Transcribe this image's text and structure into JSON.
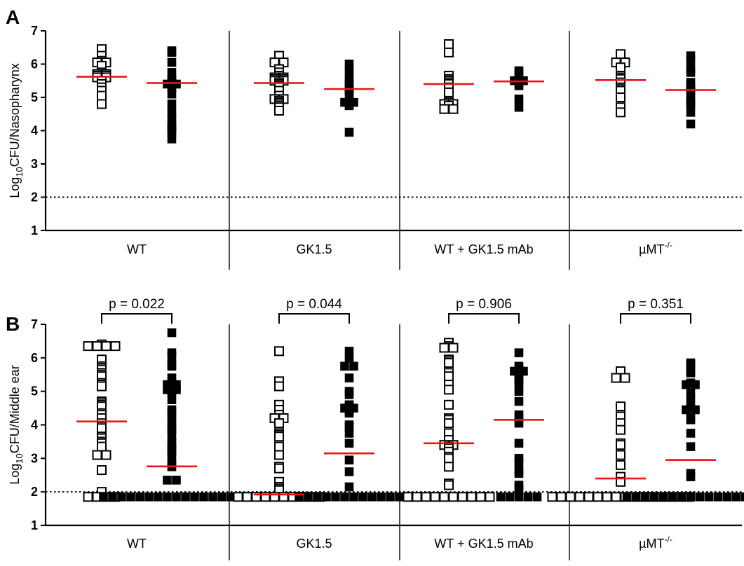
{
  "chart_data": [
    {
      "panel": "A",
      "type": "scatter",
      "ylabel_main": "Log",
      "ylabel_sub": "10",
      "ylabel_rest": "CFU/Nasopharynx",
      "ylim": [
        1,
        7
      ],
      "yticks": [
        "1",
        "2",
        "3",
        "4",
        "5",
        "6",
        "7"
      ],
      "detection_limit": 2,
      "groups": [
        {
          "label": "WT",
          "sup": "",
          "open": [
            5.8,
            6.45,
            6.25,
            6.1,
            6.05,
            6.05,
            5.95,
            5.75,
            5.7,
            5.7,
            5.65,
            5.65,
            5.6,
            5.6,
            5.5,
            5.4,
            5.3,
            5.2,
            5.05,
            4.8
          ],
          "filled": [
            6.4,
            6.35,
            6.05,
            5.75,
            5.55,
            5.5,
            5.45,
            5.4,
            5.4,
            5.3,
            5.1,
            4.8,
            4.55,
            4.35,
            4.15,
            4.1,
            4.05,
            3.95,
            3.75
          ],
          "median_open": 5.62,
          "median_filled": 5.43
        },
        {
          "label": "GK1.5",
          "sup": "",
          "open": [
            6.25,
            6.05,
            6.05,
            5.85,
            5.75,
            5.65,
            5.6,
            5.6,
            5.55,
            5.55,
            5.5,
            5.5,
            5.45,
            5.4,
            5.35,
            5.3,
            5.2,
            5.05,
            4.95,
            4.95,
            4.9,
            4.85,
            4.8,
            4.75,
            4.7,
            4.6
          ],
          "filled": [
            6.0,
            5.8,
            5.55,
            5.45,
            5.3,
            5.25,
            5.2,
            5.15,
            4.9,
            4.85,
            4.85,
            4.8,
            4.75,
            3.95
          ],
          "median_open": 5.43,
          "median_filled": 5.25
        },
        {
          "label": "WT + GK1.5 mAb",
          "sup": "",
          "open": [
            6.6,
            6.35,
            5.65,
            5.55,
            5.5,
            5.45,
            5.4,
            5.3,
            5.15,
            4.85,
            4.8,
            4.8,
            4.75,
            4.65,
            4.65
          ],
          "filled": [
            5.8,
            5.75,
            5.6,
            5.5,
            5.5,
            5.45,
            5.35,
            4.95,
            4.7
          ],
          "median_open": 5.4,
          "median_filled": 5.48
        },
        {
          "label": "µMT",
          "sup": "-/-",
          "open": [
            6.3,
            6.05,
            6.05,
            5.9,
            5.65,
            5.6,
            5.55,
            5.45,
            5.3,
            5.25,
            5.2,
            5.0,
            4.7,
            4.55
          ],
          "filled": [
            6.25,
            6.1,
            5.85,
            5.75,
            5.45,
            5.35,
            5.25,
            5.2,
            5.15,
            4.9,
            4.85,
            4.8,
            4.55,
            4.2
          ],
          "median_open": 5.52,
          "median_filled": 5.22
        }
      ]
    },
    {
      "panel": "B",
      "type": "scatter",
      "ylabel_main": "Log",
      "ylabel_sub": "10",
      "ylabel_rest": "CFU/Middle ear",
      "ylim": [
        1,
        7
      ],
      "yticks": [
        "1",
        "2",
        "3",
        "4",
        "5",
        "6",
        "7"
      ],
      "detection_limit": 2,
      "groups": [
        {
          "label": "WT",
          "sup": "",
          "pvalue": "p = 0.022",
          "open": [
            6.4,
            6.35,
            6.35,
            6.35,
            6.35,
            5.95,
            5.75,
            5.7,
            5.65,
            5.55,
            5.5,
            5.45,
            5.25,
            5.2,
            5.15,
            4.7,
            4.65,
            4.6,
            4.55,
            4.35,
            4.3,
            4.2,
            4.05,
            3.95,
            3.9,
            3.65,
            3.6,
            3.5,
            3.45,
            3.35,
            3.1,
            3.1,
            2.65,
            2.0,
            1.85,
            1.85,
            1.85,
            1.85
          ],
          "filled": [
            6.75,
            6.15,
            6.05,
            5.8,
            5.75,
            5.4,
            5.25,
            5.2,
            5.2,
            5.15,
            5.1,
            5.05,
            5.05,
            5.0,
            4.75,
            4.45,
            4.35,
            4.2,
            4.05,
            3.9,
            3.85,
            3.65,
            3.45,
            3.35,
            3.25,
            3.2,
            3.05,
            2.85,
            2.75,
            2.35,
            2.35,
            1.85,
            1.85,
            1.85,
            1.85,
            1.85,
            1.85,
            1.85,
            1.85,
            1.85,
            1.85,
            1.85,
            1.85,
            1.85,
            1.85,
            1.85,
            1.85
          ],
          "median_open": 4.1,
          "median_filled": 2.76
        },
        {
          "label": "GK1.5",
          "sup": "",
          "pvalue": "p = 0.044",
          "open": [
            6.2,
            5.3,
            5.15,
            4.6,
            4.45,
            4.3,
            4.2,
            4.2,
            4.05,
            3.75,
            3.7,
            3.65,
            3.35,
            3.1,
            2.75,
            2.7,
            2.3,
            2.15,
            2.1,
            2.05,
            1.85,
            1.85,
            1.85,
            1.85,
            1.85,
            1.85,
            1.85,
            1.85,
            1.85,
            1.85
          ],
          "filled": [
            6.2,
            6.0,
            5.75,
            5.75,
            5.4,
            5.0,
            4.9,
            4.6,
            4.55,
            4.5,
            4.5,
            4.45,
            4.4,
            4.35,
            4.0,
            3.95,
            3.75,
            3.45,
            2.95,
            2.6,
            2.15,
            1.85,
            1.85,
            1.85,
            1.85,
            1.85,
            1.85,
            1.85,
            1.85,
            1.85,
            1.85,
            1.85,
            1.85
          ],
          "median_open": 1.92,
          "median_filled": 3.15
        },
        {
          "label": "WT + GK1.5 mAb",
          "sup": "",
          "pvalue": "p = 0.906",
          "open": [
            6.45,
            6.35,
            6.3,
            6.3,
            5.95,
            5.9,
            5.85,
            5.55,
            5.45,
            5.2,
            5.05,
            4.6,
            4.2,
            4.15,
            4.05,
            3.75,
            3.55,
            3.4,
            3.4,
            3.35,
            3.3,
            3.2,
            3.05,
            3.0,
            2.75,
            2.25,
            2.2,
            1.85,
            1.85,
            1.85,
            1.85,
            1.85,
            1.85,
            1.85,
            1.85,
            1.85,
            1.85
          ],
          "filled": [
            6.15,
            5.75,
            5.65,
            5.6,
            5.6,
            5.45,
            5.4,
            5.35,
            5.2,
            5.0,
            4.7,
            4.3,
            4.2,
            4.05,
            3.45,
            3.0,
            2.9,
            2.65,
            2.55,
            2.2,
            2.1,
            1.85,
            1.85,
            1.85,
            1.85,
            1.85
          ],
          "median_open": 3.45,
          "median_filled": 4.15
        },
        {
          "label": "µMT",
          "sup": "-/-",
          "pvalue": "p = 0.351",
          "open": [
            5.6,
            5.4,
            5.4,
            4.55,
            4.3,
            4.25,
            4.05,
            3.85,
            3.45,
            3.4,
            3.1,
            2.8,
            2.45,
            2.3,
            1.85,
            1.85,
            1.85,
            1.85,
            1.85,
            1.85,
            1.85,
            1.85,
            1.85,
            1.85,
            1.85,
            1.85,
            1.85,
            1.85,
            1.85,
            1.85
          ],
          "filled": [
            5.85,
            5.8,
            5.75,
            5.6,
            5.55,
            5.25,
            5.2,
            5.2,
            4.95,
            4.75,
            4.5,
            4.45,
            4.45,
            4.2,
            4.15,
            3.75,
            3.35,
            2.55,
            2.45,
            1.85,
            1.85,
            1.85,
            1.85,
            1.85,
            1.85,
            1.85,
            1.85,
            1.85,
            1.85,
            1.85,
            1.85,
            1.85,
            1.85,
            1.85
          ],
          "median_open": 2.4,
          "median_filled": 2.95
        }
      ]
    }
  ],
  "colors": {
    "median": "#e8161b",
    "marker": "#000000",
    "axis": "#000000"
  }
}
